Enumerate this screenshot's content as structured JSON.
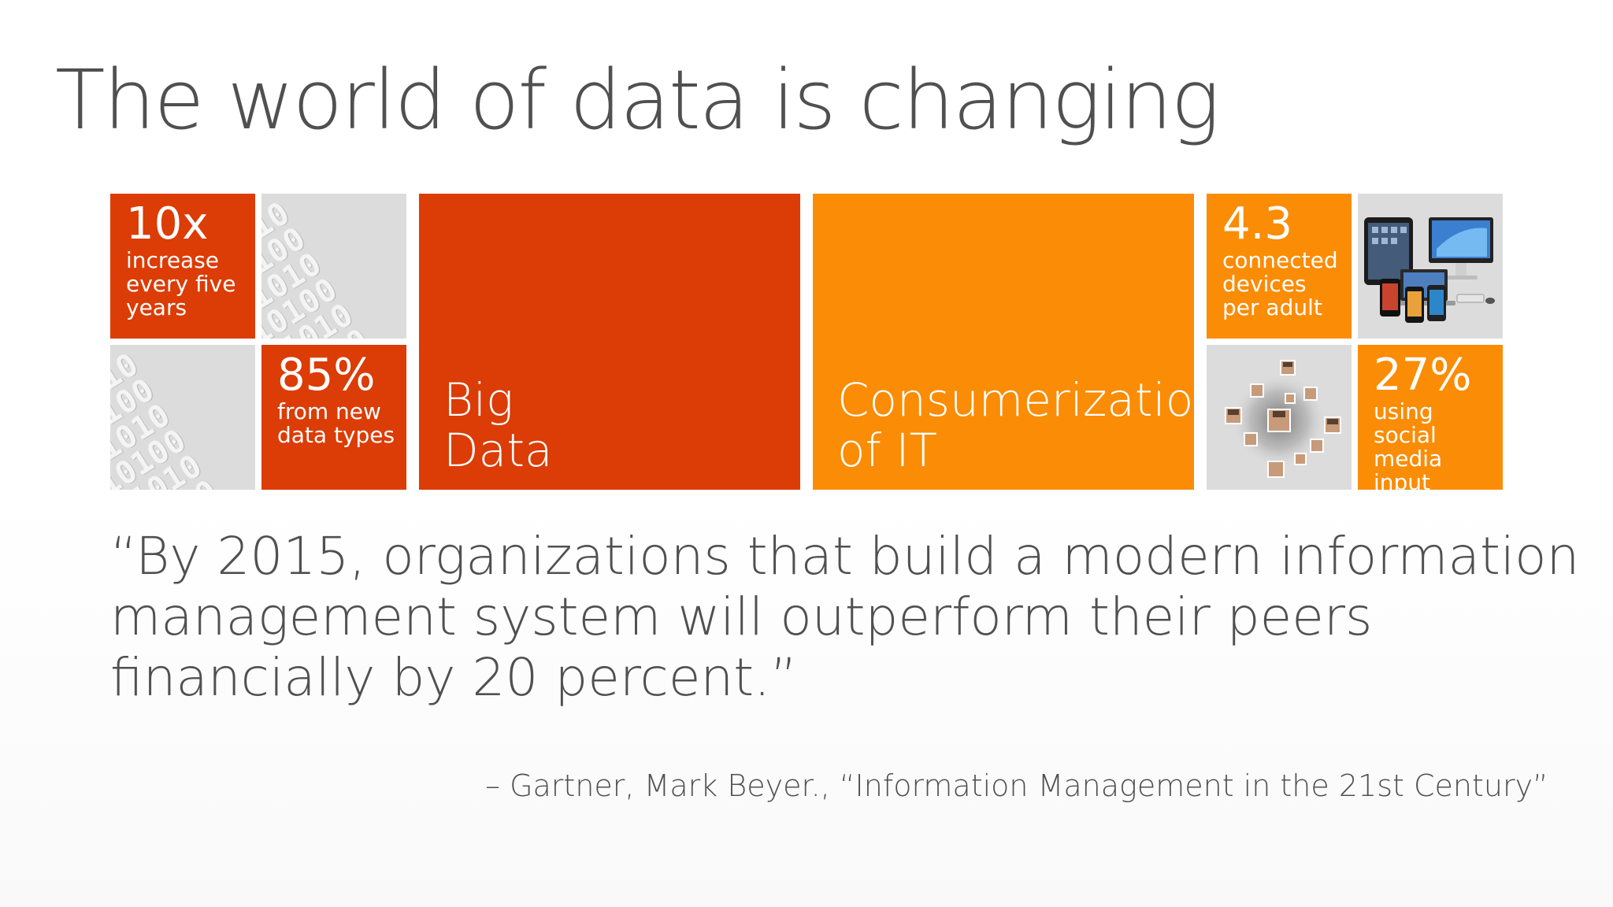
{
  "slide": {
    "title": "The world of data is changing",
    "tiles": {
      "stat_10x": {
        "number": "10x",
        "caption": "increase\nevery five\nyears"
      },
      "stat_85": {
        "number": "85%",
        "caption": "from new\ndata types"
      },
      "big_data": {
        "label": "Big\nData"
      },
      "consumerization": {
        "label": "Consumerization\nof IT"
      },
      "stat_43": {
        "number": "4.3",
        "caption": "connected\ndevices\nper adult"
      },
      "stat_27": {
        "number": "27%",
        "caption": "using social\nmedia\ninput"
      }
    },
    "quote": "“By 2015, organizations that build a modern information\n management system will outperform their peers\n financially by 20 percent.”",
    "attribution": "– Gartner, Mark Beyer., “Information Management in the 21st Century”"
  },
  "colors": {
    "red": "#dc3c05",
    "orange": "#fb8c05",
    "grey": "#dcdcdc",
    "text": "#505050"
  }
}
